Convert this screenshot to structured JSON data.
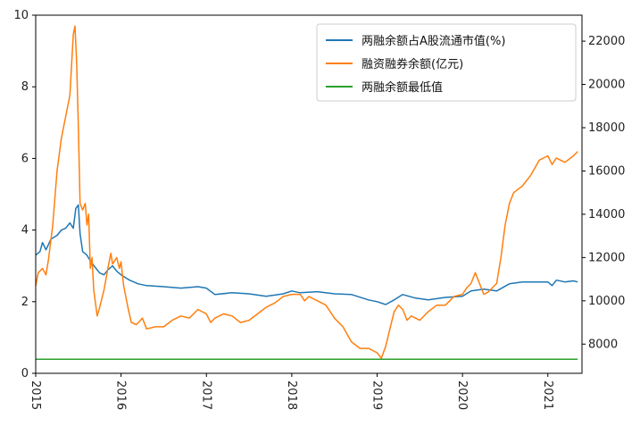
{
  "chart_data": {
    "type": "line",
    "title": "",
    "xlabel": "",
    "ylabel_left": "",
    "ylabel_right": "",
    "x_axis": {
      "range": [
        2015.0,
        2021.4
      ],
      "ticks": [
        2015,
        2016,
        2017,
        2018,
        2019,
        2020,
        2021
      ],
      "tick_labels": [
        "2015",
        "2016",
        "2017",
        "2018",
        "2019",
        "2020",
        "2021"
      ],
      "tick_label_rotation": "vertical"
    },
    "y_left": {
      "range": [
        0,
        10
      ],
      "ticks": [
        0,
        2,
        4,
        6,
        8,
        10
      ],
      "tick_labels": [
        "0",
        "2",
        "4",
        "6",
        "8",
        "10"
      ]
    },
    "y_right": {
      "range": [
        6650,
        23200
      ],
      "ticks": [
        8000,
        10000,
        12000,
        14000,
        16000,
        18000,
        20000,
        22000
      ],
      "tick_labels": [
        "8000",
        "10000",
        "12000",
        "14000",
        "16000",
        "18000",
        "20000",
        "22000"
      ]
    },
    "legend": {
      "placement": "top-right",
      "entries": [
        "两融余额占A股流通市值(%)",
        "融资融券余额(亿元)",
        "两融余额最低值"
      ]
    },
    "grid": false,
    "series": [
      {
        "name": "两融余额占A股流通市值(%)",
        "axis": "left",
        "color": "#1f77b4",
        "points": [
          [
            2015.0,
            3.3
          ],
          [
            2015.05,
            3.4
          ],
          [
            2015.08,
            3.65
          ],
          [
            2015.12,
            3.45
          ],
          [
            2015.18,
            3.75
          ],
          [
            2015.25,
            3.85
          ],
          [
            2015.3,
            4.0
          ],
          [
            2015.35,
            4.05
          ],
          [
            2015.4,
            4.2
          ],
          [
            2015.44,
            4.05
          ],
          [
            2015.47,
            4.6
          ],
          [
            2015.5,
            4.7
          ],
          [
            2015.52,
            3.9
          ],
          [
            2015.55,
            3.4
          ],
          [
            2015.6,
            3.3
          ],
          [
            2015.65,
            3.1
          ],
          [
            2015.7,
            2.95
          ],
          [
            2015.75,
            2.8
          ],
          [
            2015.8,
            2.75
          ],
          [
            2015.85,
            2.9
          ],
          [
            2015.9,
            3.0
          ],
          [
            2015.95,
            2.85
          ],
          [
            2016.0,
            2.75
          ],
          [
            2016.1,
            2.6
          ],
          [
            2016.2,
            2.5
          ],
          [
            2016.3,
            2.45
          ],
          [
            2016.5,
            2.42
          ],
          [
            2016.7,
            2.38
          ],
          [
            2016.9,
            2.42
          ],
          [
            2017.0,
            2.38
          ],
          [
            2017.1,
            2.2
          ],
          [
            2017.3,
            2.25
          ],
          [
            2017.5,
            2.22
          ],
          [
            2017.7,
            2.15
          ],
          [
            2017.9,
            2.22
          ],
          [
            2018.0,
            2.3
          ],
          [
            2018.1,
            2.25
          ],
          [
            2018.3,
            2.28
          ],
          [
            2018.5,
            2.22
          ],
          [
            2018.7,
            2.2
          ],
          [
            2018.9,
            2.05
          ],
          [
            2019.0,
            2.0
          ],
          [
            2019.1,
            1.92
          ],
          [
            2019.2,
            2.05
          ],
          [
            2019.3,
            2.2
          ],
          [
            2019.45,
            2.1
          ],
          [
            2019.6,
            2.05
          ],
          [
            2019.8,
            2.12
          ],
          [
            2020.0,
            2.15
          ],
          [
            2020.1,
            2.3
          ],
          [
            2020.25,
            2.35
          ],
          [
            2020.4,
            2.3
          ],
          [
            2020.55,
            2.5
          ],
          [
            2020.7,
            2.55
          ],
          [
            2020.9,
            2.55
          ],
          [
            2021.0,
            2.55
          ],
          [
            2021.05,
            2.45
          ],
          [
            2021.1,
            2.6
          ],
          [
            2021.2,
            2.55
          ],
          [
            2021.3,
            2.58
          ],
          [
            2021.35,
            2.55
          ]
        ]
      },
      {
        "name": "融资融券余额(亿元)",
        "axis": "right",
        "color": "#ff7f0e",
        "points": [
          [
            2015.0,
            10700
          ],
          [
            2015.03,
            11300
          ],
          [
            2015.08,
            11500
          ],
          [
            2015.12,
            11200
          ],
          [
            2015.15,
            11900
          ],
          [
            2015.2,
            13500
          ],
          [
            2015.25,
            16000
          ],
          [
            2015.3,
            17500
          ],
          [
            2015.35,
            18500
          ],
          [
            2015.4,
            19500
          ],
          [
            2015.44,
            22300
          ],
          [
            2015.46,
            22700
          ],
          [
            2015.48,
            21000
          ],
          [
            2015.5,
            18000
          ],
          [
            2015.52,
            14500
          ],
          [
            2015.55,
            14200
          ],
          [
            2015.58,
            14500
          ],
          [
            2015.6,
            13500
          ],
          [
            2015.62,
            14000
          ],
          [
            2015.64,
            11500
          ],
          [
            2015.66,
            12000
          ],
          [
            2015.68,
            10500
          ],
          [
            2015.72,
            9300
          ],
          [
            2015.75,
            9700
          ],
          [
            2015.8,
            10500
          ],
          [
            2015.85,
            11600
          ],
          [
            2015.88,
            12200
          ],
          [
            2015.9,
            11700
          ],
          [
            2015.95,
            12000
          ],
          [
            2015.98,
            11500
          ],
          [
            2016.0,
            11800
          ],
          [
            2016.03,
            10700
          ],
          [
            2016.08,
            9700
          ],
          [
            2016.12,
            9000
          ],
          [
            2016.18,
            8900
          ],
          [
            2016.25,
            9200
          ],
          [
            2016.3,
            8700
          ],
          [
            2016.4,
            8800
          ],
          [
            2016.5,
            8800
          ],
          [
            2016.6,
            9100
          ],
          [
            2016.7,
            9300
          ],
          [
            2016.8,
            9200
          ],
          [
            2016.9,
            9600
          ],
          [
            2017.0,
            9400
          ],
          [
            2017.05,
            9000
          ],
          [
            2017.1,
            9200
          ],
          [
            2017.2,
            9400
          ],
          [
            2017.3,
            9300
          ],
          [
            2017.4,
            9000
          ],
          [
            2017.5,
            9100
          ],
          [
            2017.6,
            9400
          ],
          [
            2017.7,
            9700
          ],
          [
            2017.8,
            9900
          ],
          [
            2017.9,
            10200
          ],
          [
            2018.0,
            10300
          ],
          [
            2018.1,
            10300
          ],
          [
            2018.15,
            10000
          ],
          [
            2018.2,
            10200
          ],
          [
            2018.3,
            10000
          ],
          [
            2018.4,
            9800
          ],
          [
            2018.5,
            9200
          ],
          [
            2018.6,
            8800
          ],
          [
            2018.7,
            8100
          ],
          [
            2018.8,
            7800
          ],
          [
            2018.9,
            7800
          ],
          [
            2019.0,
            7600
          ],
          [
            2019.05,
            7350
          ],
          [
            2019.1,
            7900
          ],
          [
            2019.15,
            8700
          ],
          [
            2019.2,
            9500
          ],
          [
            2019.25,
            9800
          ],
          [
            2019.3,
            9600
          ],
          [
            2019.35,
            9100
          ],
          [
            2019.4,
            9300
          ],
          [
            2019.5,
            9100
          ],
          [
            2019.6,
            9500
          ],
          [
            2019.7,
            9800
          ],
          [
            2019.8,
            9800
          ],
          [
            2019.9,
            10200
          ],
          [
            2020.0,
            10300
          ],
          [
            2020.05,
            10600
          ],
          [
            2020.1,
            10800
          ],
          [
            2020.15,
            11300
          ],
          [
            2020.2,
            10800
          ],
          [
            2020.25,
            10300
          ],
          [
            2020.3,
            10400
          ],
          [
            2020.4,
            10800
          ],
          [
            2020.45,
            12000
          ],
          [
            2020.5,
            13500
          ],
          [
            2020.55,
            14500
          ],
          [
            2020.6,
            15000
          ],
          [
            2020.7,
            15300
          ],
          [
            2020.8,
            15800
          ],
          [
            2020.9,
            16500
          ],
          [
            2021.0,
            16700
          ],
          [
            2021.05,
            16300
          ],
          [
            2021.1,
            16600
          ],
          [
            2021.2,
            16400
          ],
          [
            2021.3,
            16700
          ],
          [
            2021.35,
            16900
          ]
        ]
      },
      {
        "name": "两融余额最低值",
        "axis": "right",
        "color": "#2ca02c",
        "points": [
          [
            2015.0,
            7300
          ],
          [
            2021.35,
            7300
          ]
        ]
      }
    ]
  }
}
